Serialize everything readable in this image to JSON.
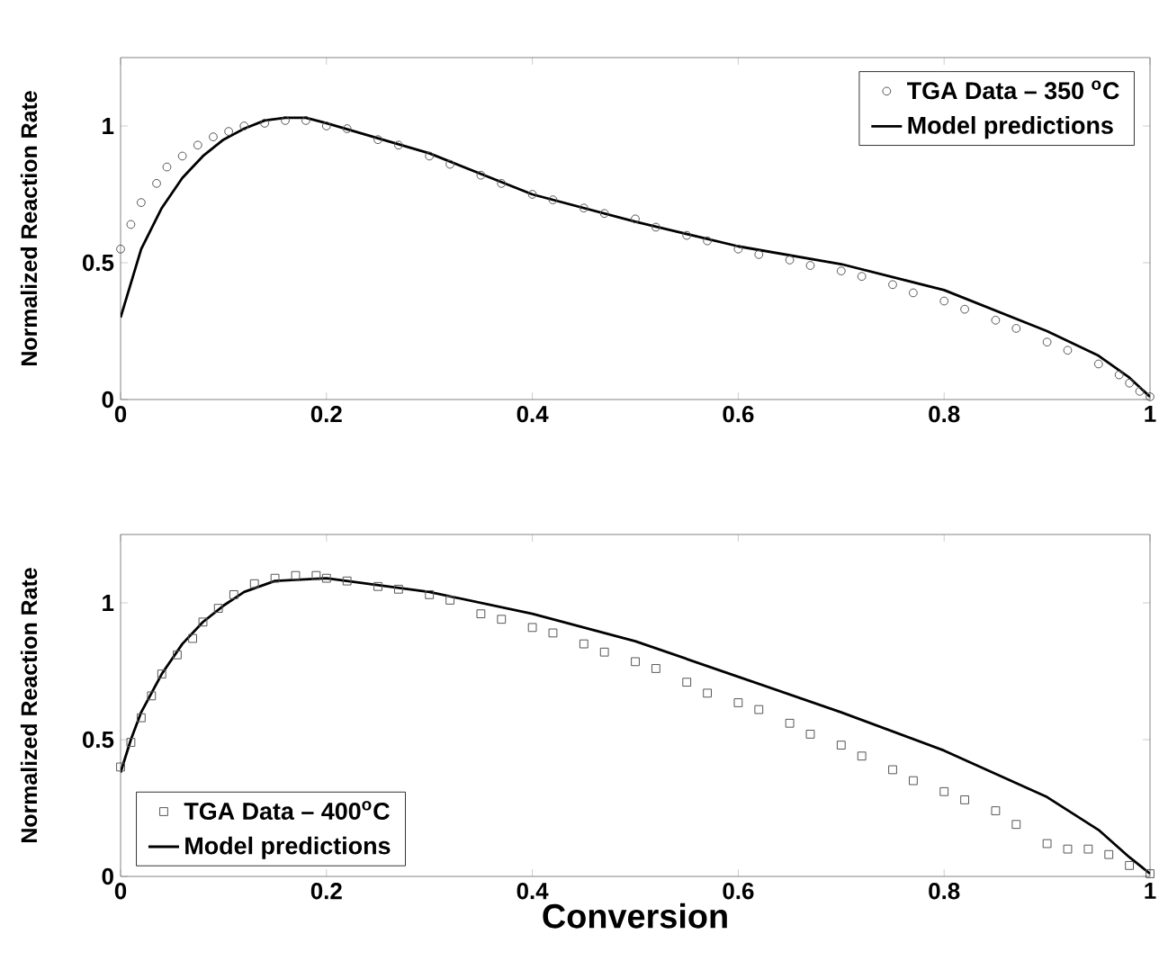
{
  "chart_data": [
    {
      "type": "line",
      "ylabel": "Normalized Reaction Rate",
      "xlim": [
        0,
        1
      ],
      "ylim": [
        0,
        1.25
      ],
      "xticks": [
        0,
        0.2,
        0.4,
        0.6,
        0.8,
        1
      ],
      "yticks": [
        0,
        0.5,
        1
      ],
      "grid": false,
      "legend": "top right",
      "series": [
        {
          "name": "TGA Data – 350 $^{o}$C",
          "type": "scatter",
          "marker": "circle",
          "color": "#555555",
          "x": [
            0,
            0.01,
            0.02,
            0.035,
            0.045,
            0.06,
            0.075,
            0.09,
            0.105,
            0.12,
            0.14,
            0.16,
            0.18,
            0.2,
            0.22,
            0.25,
            0.27,
            0.3,
            0.32,
            0.35,
            0.37,
            0.4,
            0.42,
            0.45,
            0.47,
            0.5,
            0.52,
            0.55,
            0.57,
            0.6,
            0.62,
            0.65,
            0.67,
            0.7,
            0.72,
            0.75,
            0.77,
            0.8,
            0.82,
            0.85,
            0.87,
            0.9,
            0.92,
            0.95,
            0.97,
            0.98,
            0.99,
            1.0
          ],
          "values": [
            0.55,
            0.64,
            0.72,
            0.79,
            0.85,
            0.89,
            0.93,
            0.96,
            0.98,
            1.0,
            1.01,
            1.02,
            1.02,
            1.0,
            0.99,
            0.95,
            0.93,
            0.89,
            0.86,
            0.82,
            0.79,
            0.75,
            0.73,
            0.7,
            0.68,
            0.66,
            0.63,
            0.6,
            0.58,
            0.55,
            0.53,
            0.51,
            0.49,
            0.47,
            0.45,
            0.42,
            0.39,
            0.36,
            0.33,
            0.29,
            0.26,
            0.21,
            0.18,
            0.13,
            0.09,
            0.06,
            0.03,
            0.01
          ]
        },
        {
          "name": "Model predictions",
          "color": "#000000",
          "x": [
            0,
            0.02,
            0.04,
            0.06,
            0.08,
            0.1,
            0.12,
            0.14,
            0.16,
            0.18,
            0.2,
            0.3,
            0.4,
            0.5,
            0.6,
            0.7,
            0.8,
            0.9,
            0.95,
            0.98,
            1.0
          ],
          "values": [
            0.3,
            0.55,
            0.7,
            0.81,
            0.89,
            0.95,
            0.99,
            1.02,
            1.03,
            1.03,
            1.01,
            0.9,
            0.75,
            0.65,
            0.56,
            0.495,
            0.4,
            0.25,
            0.16,
            0.08,
            0.01
          ]
        }
      ]
    },
    {
      "type": "line",
      "xlabel": "Conversion",
      "ylabel": "Normalized Reaction Rate",
      "xlim": [
        0,
        1
      ],
      "ylim": [
        0,
        1.25
      ],
      "xticks": [
        0,
        0.2,
        0.4,
        0.6,
        0.8,
        1
      ],
      "yticks": [
        0,
        0.5,
        1
      ],
      "grid": false,
      "legend": "bottom left",
      "series": [
        {
          "name": "TGA Data – 400$^{o}$C",
          "type": "scatter",
          "marker": "square",
          "color": "#555555",
          "x": [
            0,
            0.01,
            0.02,
            0.03,
            0.04,
            0.055,
            0.07,
            0.08,
            0.095,
            0.11,
            0.13,
            0.15,
            0.17,
            0.19,
            0.2,
            0.22,
            0.25,
            0.27,
            0.3,
            0.32,
            0.35,
            0.37,
            0.4,
            0.42,
            0.45,
            0.47,
            0.5,
            0.52,
            0.55,
            0.57,
            0.6,
            0.62,
            0.65,
            0.67,
            0.7,
            0.72,
            0.75,
            0.77,
            0.8,
            0.82,
            0.85,
            0.87,
            0.9,
            0.92,
            0.94,
            0.96,
            0.98,
            1.0
          ],
          "values": [
            0.4,
            0.49,
            0.58,
            0.66,
            0.74,
            0.81,
            0.87,
            0.93,
            0.98,
            1.03,
            1.07,
            1.09,
            1.1,
            1.1,
            1.09,
            1.08,
            1.06,
            1.05,
            1.03,
            1.01,
            0.96,
            0.94,
            0.91,
            0.89,
            0.85,
            0.82,
            0.785,
            0.76,
            0.71,
            0.67,
            0.635,
            0.61,
            0.56,
            0.52,
            0.48,
            0.44,
            0.39,
            0.35,
            0.31,
            0.28,
            0.24,
            0.19,
            0.12,
            0.1,
            0.1,
            0.08,
            0.04,
            0.01
          ]
        },
        {
          "name": "Model predictions",
          "color": "#000000",
          "x": [
            0,
            0.01,
            0.02,
            0.04,
            0.06,
            0.08,
            0.1,
            0.12,
            0.15,
            0.2,
            0.3,
            0.4,
            0.5,
            0.6,
            0.7,
            0.8,
            0.9,
            0.95,
            0.98,
            1.0
          ],
          "values": [
            0.38,
            0.5,
            0.6,
            0.74,
            0.85,
            0.93,
            0.99,
            1.04,
            1.08,
            1.09,
            1.04,
            0.96,
            0.86,
            0.73,
            0.6,
            0.46,
            0.29,
            0.17,
            0.07,
            0.01
          ]
        }
      ]
    }
  ]
}
